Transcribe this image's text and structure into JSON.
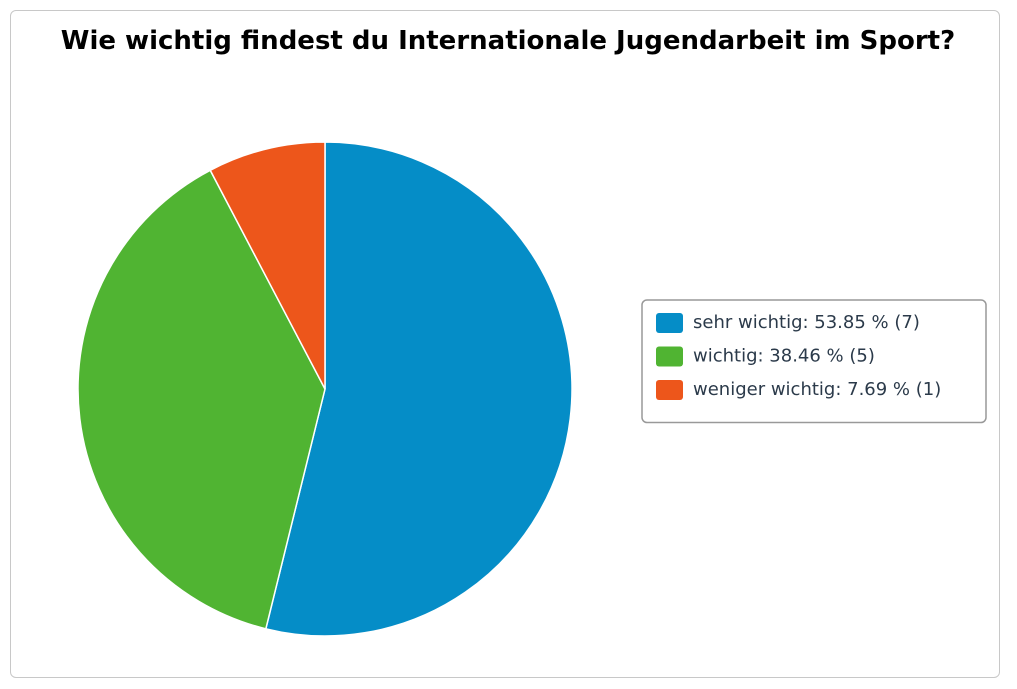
{
  "chart_data": {
    "type": "pie",
    "title": "Wie wichtig findest du Internationale Jugendarbeit im Sport?",
    "categories": [
      "sehr wichtig: 53.85 % (7)",
      "wichtig: 38.46 % (5)",
      "weniger wichtig: 7.69 % (1)"
    ],
    "values": [
      53.85,
      38.46,
      7.69
    ],
    "colors": [
      "#058dc7",
      "#50b432",
      "#ed561b"
    ],
    "legend": "right"
  }
}
